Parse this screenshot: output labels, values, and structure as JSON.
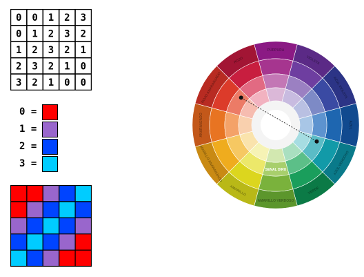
{
  "number_grid": [
    [
      0,
      0,
      1,
      2,
      3
    ],
    [
      0,
      1,
      2,
      3,
      2
    ],
    [
      1,
      2,
      3,
      2,
      1
    ],
    [
      2,
      3,
      2,
      1,
      0
    ],
    [
      3,
      2,
      1,
      0,
      0
    ]
  ],
  "legend": [
    {
      "label": "0 =",
      "color": "#ff0000"
    },
    {
      "label": "1 =",
      "color": "#9966cc"
    },
    {
      "label": "2 =",
      "color": "#0044ff"
    },
    {
      "label": "3 =",
      "color": "#00ccff"
    }
  ],
  "color_wheel": {
    "segments": [
      {
        "name": "PÚRPURA",
        "colors": [
          "#8b1a84",
          "#a6358f",
          "#c377b5",
          "#dbb8d8"
        ]
      },
      {
        "name": "VIOLETA",
        "colors": [
          "#5b2a86",
          "#6e3ea0",
          "#9b80c2",
          "#c8bbe0"
        ]
      },
      {
        "name": "AZUL VIOLETA",
        "colors": [
          "#2c3486",
          "#3a4aa3",
          "#7d8ac6",
          "#b9c0e2"
        ]
      },
      {
        "name": "AZUL",
        "colors": [
          "#114a8f",
          "#1e66b0",
          "#5d93cf",
          "#a8c6e6"
        ]
      },
      {
        "name": "AZUL VERDOSO",
        "colors": [
          "#0a7a8a",
          "#129aa8",
          "#5bbcc6",
          "#a6dde2"
        ]
      },
      {
        "name": "VERDE",
        "colors": [
          "#0b7a46",
          "#1a9e5c",
          "#5cbf88",
          "#a9dfc0"
        ]
      },
      {
        "name": "AMARILLO VERDOSO",
        "colors": [
          "#5c962c",
          "#7ab23c",
          "#a8cf6c",
          "#d2e8b0"
        ]
      },
      {
        "name": "AMARILLO",
        "colors": [
          "#b9b817",
          "#dcd61e",
          "#ece86a",
          "#f6f3b5"
        ]
      },
      {
        "name": "AMARILLO ANARANJADO",
        "colors": [
          "#c98a14",
          "#efac1e",
          "#f6c862",
          "#fae3ac"
        ]
      },
      {
        "name": "ANARANJADO",
        "colors": [
          "#c3581a",
          "#e87422",
          "#f4a268",
          "#f9d0ae"
        ]
      },
      {
        "name": "ROJO ANARANJADO",
        "colors": [
          "#b82b22",
          "#dc3b2a",
          "#ec7b66",
          "#f6bcb0"
        ]
      },
      {
        "name": "ROJO",
        "colors": [
          "#a21534",
          "#c81e3f",
          "#e26a82",
          "#f2b2c0"
        ]
      }
    ],
    "center_label": "SENAL DIRU",
    "dot_a": "ROJO ANARANJADO",
    "dot_b": "AZUL VERDOSO"
  }
}
